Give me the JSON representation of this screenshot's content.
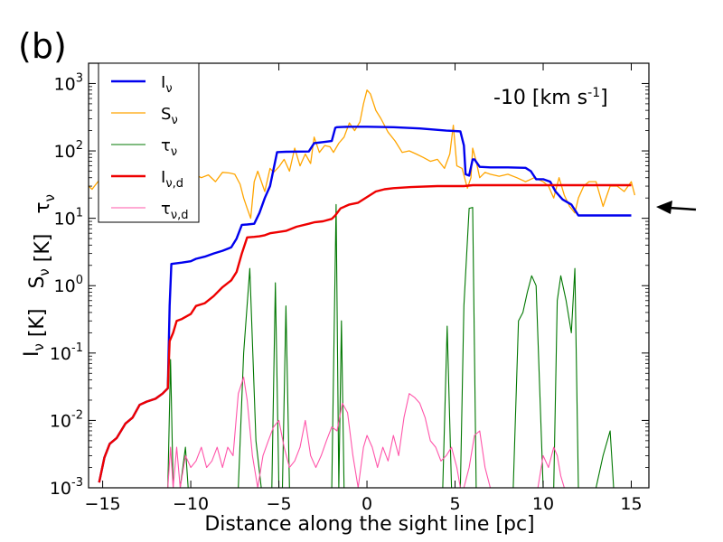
{
  "panel_label": "(b)",
  "chart_data": {
    "type": "line",
    "xscale": "linear",
    "yscale": "log",
    "xlim": [
      -15.8,
      16.0
    ],
    "ylim": [
      0.001,
      2000
    ],
    "xlabel": "Distance along the sight line [pc]",
    "ylabel": "Iν [K]  Sν [K]  τν",
    "annotation": "-10 [km s-1]",
    "legend_position": "top-left",
    "arrow": {
      "direction": "left",
      "points_to_y": 11
    },
    "x_ticks": [
      -15,
      -10,
      -5,
      0,
      5,
      10,
      15
    ],
    "x_tick_labels": [
      "−15",
      "−10",
      "−5",
      "0",
      "5",
      "10",
      "15"
    ],
    "y_ticks": [
      0.001,
      0.01,
      0.1,
      1,
      10,
      100,
      1000
    ],
    "y_tick_labels": [
      {
        "base": "10",
        "exp": "-3"
      },
      {
        "base": "10",
        "exp": "-2"
      },
      {
        "base": "10",
        "exp": "-1"
      },
      {
        "base": "10",
        "exp": "0"
      },
      {
        "base": "10",
        "exp": "1"
      },
      {
        "base": "10",
        "exp": "2"
      },
      {
        "base": "10",
        "exp": "3"
      }
    ],
    "series": [
      {
        "name": "Iν",
        "legend": {
          "main": "I",
          "sub": "ν"
        },
        "color": "#0000ee",
        "width": 2.4,
        "x": [
          -15.2,
          -14.9,
          -14.6,
          -14.2,
          -13.7,
          -13.3,
          -12.9,
          -12.5,
          -12.0,
          -11.6,
          -11.3,
          -11.2,
          -11.1,
          -10.5,
          -10.0,
          -9.7,
          -9.2,
          -8.7,
          -8.2,
          -7.7,
          -7.4,
          -7.1,
          -6.8,
          -6.4,
          -6.1,
          -5.8,
          -5.5,
          -5.1,
          -4.6,
          -3.3,
          -3.0,
          -2.5,
          -2.0,
          -1.8,
          -1.7,
          -1.0,
          0.0,
          1.5,
          3.0,
          4.5,
          5.3,
          5.5,
          5.6,
          5.8,
          6.0,
          6.1,
          6.4,
          7.0,
          8.0,
          9.0,
          9.3,
          9.6,
          10.0,
          10.4,
          10.7,
          11.1,
          11.6,
          12.0,
          13.0,
          14.0,
          15.0
        ],
        "y": [
          0.0012,
          0.0028,
          0.0045,
          0.0055,
          0.009,
          0.011,
          0.017,
          0.019,
          0.021,
          0.025,
          0.03,
          0.5,
          2.1,
          2.2,
          2.3,
          2.5,
          2.7,
          3.0,
          3.3,
          3.7,
          5.0,
          8.0,
          8.1,
          8.3,
          12,
          20,
          30,
          96,
          97,
          98,
          130,
          135,
          140,
          220,
          225,
          228,
          228,
          225,
          215,
          200,
          195,
          120,
          45,
          43,
          75,
          75,
          58,
          57,
          57,
          56,
          50,
          38,
          38,
          35,
          25,
          19,
          16,
          11,
          11,
          11,
          11
        ]
      },
      {
        "name": "Sν",
        "legend": {
          "main": "S",
          "sub": "ν"
        },
        "color": "#ffa500",
        "width": 1.3,
        "x": [
          -15.8,
          -15.6,
          -15.3,
          -15.0,
          -14.6,
          -14.2,
          -13.8,
          -13.4,
          -13.0,
          -12.6,
          -12.2,
          -11.8,
          -11.4,
          -11.0,
          -10.6,
          -10.2,
          -9.8,
          -9.4,
          -9.0,
          -8.6,
          -8.2,
          -7.8,
          -7.5,
          -7.2,
          -7.0,
          -6.8,
          -6.6,
          -6.4,
          -6.2,
          -5.8,
          -5.5,
          -5.3,
          -5.0,
          -4.7,
          -4.4,
          -4.1,
          -3.8,
          -3.5,
          -3.2,
          -3.0,
          -2.7,
          -2.4,
          -2.1,
          -1.9,
          -1.6,
          -1.3,
          -1.0,
          -0.7,
          -0.4,
          -0.2,
          0.0,
          0.2,
          0.5,
          0.8,
          1.2,
          1.6,
          2.0,
          2.4,
          2.8,
          3.2,
          3.6,
          4.0,
          4.4,
          4.7,
          4.9,
          5.1,
          5.4,
          5.7,
          5.9,
          6.0,
          6.2,
          6.4,
          6.7,
          7.0,
          7.5,
          8.0,
          8.5,
          9.0,
          9.5,
          10.0,
          10.3,
          10.6,
          10.9,
          11.2,
          11.5,
          11.8,
          12.0,
          12.3,
          12.6,
          13.0,
          13.4,
          13.8,
          14.2,
          14.6,
          15.0,
          15.2
        ],
        "y": [
          30,
          27,
          34,
          42,
          28,
          45,
          38,
          48,
          35,
          42,
          38,
          45,
          30,
          38,
          42,
          38,
          45,
          40,
          44,
          35,
          48,
          47,
          45,
          32,
          20,
          14,
          10,
          35,
          50,
          25,
          55,
          48,
          58,
          75,
          50,
          110,
          60,
          90,
          65,
          160,
          95,
          120,
          115,
          95,
          130,
          160,
          260,
          200,
          270,
          500,
          800,
          700,
          400,
          300,
          190,
          140,
          95,
          100,
          90,
          80,
          70,
          75,
          55,
          90,
          240,
          60,
          55,
          28,
          40,
          110,
          70,
          40,
          48,
          45,
          42,
          45,
          40,
          35,
          40,
          35,
          30,
          20,
          40,
          22,
          15,
          12,
          20,
          30,
          35,
          35,
          15,
          30,
          30,
          25,
          35,
          22
        ]
      },
      {
        "name": "τν",
        "legend": {
          "main": "τ",
          "sub": "ν"
        },
        "color": "#007700",
        "width": 1.1,
        "x": [
          -11.3,
          -11.15,
          -11.0,
          -10.6,
          -10.3,
          -10.15,
          -10.0,
          -7.3,
          -7.0,
          -6.65,
          -6.3,
          -6.0,
          -5.4,
          -5.2,
          -5.0,
          -4.8,
          -4.6,
          -4.4,
          -4.0,
          -3.0,
          -2.0,
          -1.75,
          -1.6,
          -1.45,
          -1.3,
          -1.1,
          0.0,
          4.3,
          4.55,
          4.8,
          5.1,
          5.3,
          5.5,
          5.8,
          6.0,
          6.2,
          6.45,
          6.7,
          7.3,
          8.3,
          8.6,
          8.85,
          9.1,
          9.35,
          9.6,
          10.0,
          10.2,
          10.4,
          10.6,
          10.8,
          11.0,
          11.3,
          11.6,
          11.8,
          12.0,
          12.2,
          12.6,
          13.0,
          13.4,
          13.8,
          14.0
        ],
        "y": [
          0.001,
          0.08,
          0.001,
          0.001,
          0.004,
          0.001,
          0.001,
          0.001,
          0.1,
          1.8,
          0.005,
          0.001,
          0.001,
          1.1,
          0.001,
          0.001,
          0.5,
          0.001,
          0.001,
          0.001,
          0.001,
          16,
          0.001,
          0.3,
          0.001,
          0.001,
          0.001,
          0.001,
          0.25,
          0.001,
          0.001,
          0.001,
          0.5,
          14,
          14.5,
          0.001,
          0.001,
          0.001,
          0.001,
          0.001,
          0.3,
          0.4,
          0.8,
          1.4,
          1.0,
          0.001,
          0.001,
          0.001,
          0.001,
          0.6,
          1.4,
          0.6,
          0.2,
          1.8,
          0.001,
          0.001,
          0.001,
          0.001,
          0.003,
          0.007,
          0.001
        ]
      },
      {
        "name": "Iν,d",
        "legend": {
          "main": "I",
          "sub": "ν,d"
        },
        "color": "#ee0000",
        "width": 2.4,
        "x": [
          -15.2,
          -14.9,
          -14.6,
          -14.2,
          -13.7,
          -13.3,
          -12.9,
          -12.5,
          -12.0,
          -11.6,
          -11.3,
          -11.2,
          -11.0,
          -10.8,
          -10.5,
          -10.0,
          -9.7,
          -9.2,
          -8.7,
          -8.2,
          -7.7,
          -7.4,
          -7.1,
          -6.8,
          -6.4,
          -6.1,
          -5.8,
          -5.5,
          -5.1,
          -4.6,
          -4.0,
          -3.3,
          -3.0,
          -2.5,
          -2.0,
          -1.8,
          -1.5,
          -1.0,
          -0.5,
          0.5,
          1.0,
          1.5,
          2.5,
          4.0,
          5.0,
          5.5,
          6.0,
          7.0,
          9.0,
          11.0,
          13.0,
          15.0
        ],
        "y": [
          0.0012,
          0.0028,
          0.0045,
          0.0055,
          0.009,
          0.011,
          0.017,
          0.019,
          0.021,
          0.025,
          0.03,
          0.15,
          0.2,
          0.3,
          0.32,
          0.38,
          0.5,
          0.55,
          0.7,
          0.95,
          1.2,
          1.6,
          3.0,
          5.2,
          5.3,
          5.4,
          5.6,
          6.0,
          6.2,
          6.5,
          7.5,
          8.3,
          8.7,
          9.0,
          9.8,
          11,
          14,
          16,
          17,
          25,
          27,
          28,
          29,
          30,
          30,
          30,
          31,
          31,
          31,
          31,
          31,
          31
        ]
      },
      {
        "name": "τν,d",
        "legend": {
          "main": "τ",
          "sub": "ν,d"
        },
        "color": "#ff55aa",
        "width": 1.1,
        "x": [
          -11.3,
          -11.15,
          -11.0,
          -10.8,
          -10.6,
          -10.3,
          -10.0,
          -9.7,
          -9.4,
          -9.1,
          -8.8,
          -8.5,
          -8.2,
          -7.9,
          -7.6,
          -7.3,
          -7.0,
          -6.8,
          -6.5,
          -6.2,
          -5.9,
          -5.6,
          -5.3,
          -5.0,
          -4.7,
          -4.4,
          -4.1,
          -3.8,
          -3.5,
          -3.2,
          -2.9,
          -2.6,
          -2.3,
          -2.0,
          -1.7,
          -1.4,
          -1.1,
          -0.8,
          -0.5,
          -0.2,
          0.0,
          0.3,
          0.6,
          0.9,
          1.2,
          1.5,
          1.8,
          2.1,
          2.4,
          2.7,
          3.0,
          3.3,
          3.6,
          3.9,
          4.2,
          4.5,
          4.8,
          5.1,
          5.3,
          5.5,
          5.8,
          6.1,
          6.4,
          6.7,
          7.0,
          7.3,
          7.6,
          7.9,
          8.2,
          8.5,
          8.8,
          9.1,
          9.4,
          9.7,
          10.0,
          10.3,
          10.6,
          10.8,
          11.0,
          11.2
        ],
        "y": [
          0.001,
          0.004,
          0.001,
          0.004,
          0.001,
          0.003,
          0.002,
          0.0025,
          0.004,
          0.002,
          0.0025,
          0.004,
          0.002,
          0.004,
          0.003,
          0.025,
          0.044,
          0.02,
          0.003,
          0.001,
          0.003,
          0.005,
          0.008,
          0.01,
          0.004,
          0.002,
          0.0025,
          0.004,
          0.01,
          0.003,
          0.002,
          0.003,
          0.005,
          0.008,
          0.007,
          0.018,
          0.013,
          0.003,
          0.001,
          0.004,
          0.006,
          0.004,
          0.002,
          0.004,
          0.0025,
          0.006,
          0.003,
          0.011,
          0.025,
          0.022,
          0.018,
          0.011,
          0.005,
          0.004,
          0.0025,
          0.003,
          0.004,
          0.002,
          0.001,
          0.001,
          0.002,
          0.006,
          0.007,
          0.002,
          0.001,
          0.001,
          0.001,
          0.001,
          0.001,
          0.001,
          0.001,
          0.001,
          0.001,
          0.001,
          0.003,
          0.002,
          0.004,
          0.003,
          0.0015,
          0.001
        ]
      }
    ]
  }
}
